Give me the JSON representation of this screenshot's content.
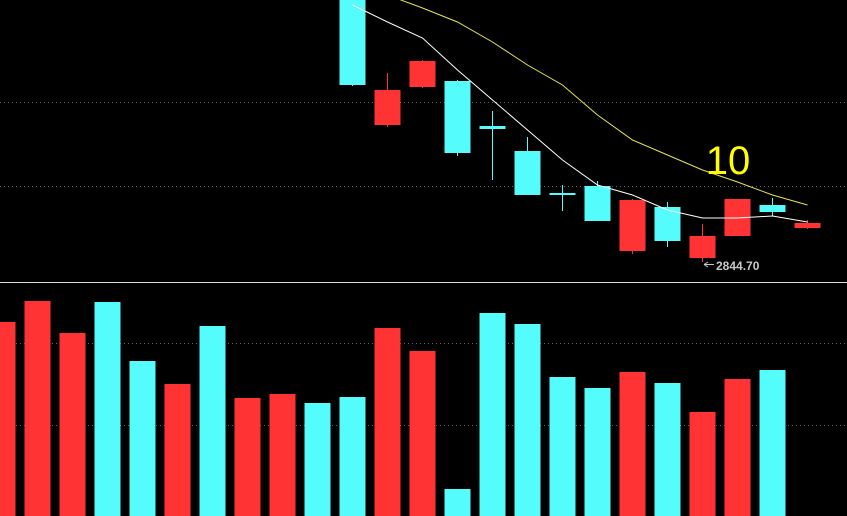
{
  "chart_data": [
    {
      "type": "candlestick",
      "categories": [
        null,
        null,
        null,
        null,
        null,
        null,
        null,
        null,
        null,
        null,
        null,
        null,
        null,
        null,
        null,
        null,
        null,
        null,
        null,
        null,
        null,
        null,
        null,
        null
      ],
      "open": [
        null,
        null,
        null,
        null,
        null,
        null,
        null,
        null,
        null,
        null,
        2953.5,
        2899.5,
        2914.7,
        2917.1,
        2899.1,
        2889.1,
        2872.3,
        2875.1,
        2849.1,
        2866.7,
        2846.3,
        2855.1,
        2867.5,
        2858.3
      ],
      "high": [
        null,
        null,
        null,
        null,
        null,
        null,
        null,
        null,
        null,
        null,
        2957.5,
        2920.3,
        2925.5,
        2917.5,
        2905.1,
        2894.7,
        2875.5,
        2877.1,
        2869.9,
        2868.7,
        2859.9,
        2869.9,
        2870.3,
        2861.5
      ],
      "low": [
        null,
        null,
        null,
        null,
        null,
        null,
        null,
        null,
        null,
        null,
        2915.1,
        2898.7,
        2914.3,
        2887.1,
        2877.5,
        2871.5,
        2865.1,
        2861.1,
        2847.9,
        2850.7,
        2844.7,
        2855.1,
        2863.1,
        2857.9
      ],
      "close": [
        null,
        null,
        null,
        null,
        null,
        null,
        null,
        null,
        null,
        null,
        2915.5,
        2913.5,
        2925.1,
        2888.3,
        2897.9,
        2871.5,
        2871.5,
        2861.1,
        2869.5,
        2853.1,
        2855.1,
        2869.9,
        2864.7,
        2860.3
      ],
      "up_color": "#ff3333",
      "down_color": "#55fcfc",
      "lines": [
        {
          "color": "#ffffff",
          "values": [
            null,
            null,
            null,
            null,
            null,
            null,
            null,
            null,
            null,
            null,
            2947.5,
            2940.7,
            2934.3,
            2921.5,
            2909.5,
            2897.5,
            2885.5,
            2875.5,
            2871.5,
            2865.5,
            2862.3,
            2862.3,
            2863.1,
            2860.7
          ]
        },
        {
          "color": "#e6e64a",
          "values": [
            null,
            null,
            null,
            null,
            null,
            null,
            null,
            null,
            null,
            null,
            null,
            2951.5,
            2946.3,
            2940.7,
            2932.7,
            2923.5,
            2915.5,
            2903.5,
            2893.5,
            2887.5,
            2881.5,
            2876.7,
            2871.5,
            2867.5
          ]
        }
      ],
      "ylim": [
        2836.7,
        2949.5
      ],
      "yticks": [
        2875.1,
        2908.7
      ],
      "grid": true,
      "annotations": [
        {
          "text": "10",
          "color": "#ffff00"
        },
        {
          "text": "2844.70",
          "color": "#c8c8c8"
        }
      ]
    },
    {
      "type": "bar",
      "categories": [
        null,
        null,
        null,
        null,
        null,
        null,
        null,
        null,
        null,
        null,
        null,
        null,
        null,
        null,
        null,
        null,
        null,
        null,
        null,
        null,
        null,
        null,
        null,
        null
      ],
      "values": [
        194,
        215,
        183,
        214,
        155,
        132,
        190,
        118,
        122,
        113,
        119,
        188,
        165,
        27,
        203,
        192,
        139,
        128,
        144,
        133,
        104,
        137,
        146,
        null
      ],
      "colors": [
        "#ff3333",
        "#ff3333",
        "#ff3333",
        "#55fcfc",
        "#55fcfc",
        "#ff3333",
        "#55fcfc",
        "#ff3333",
        "#ff3333",
        "#55fcfc",
        "#55fcfc",
        "#ff3333",
        "#ff3333",
        "#55fcfc",
        "#55fcfc",
        "#55fcfc",
        "#55fcfc",
        "#55fcfc",
        "#ff3333",
        "#55fcfc",
        "#ff3333",
        "#ff3333",
        "#55fcfc",
        null
      ],
      "ylim": [
        0,
        233
      ],
      "yticks": [
        91,
        173
      ],
      "grid": true
    }
  ]
}
